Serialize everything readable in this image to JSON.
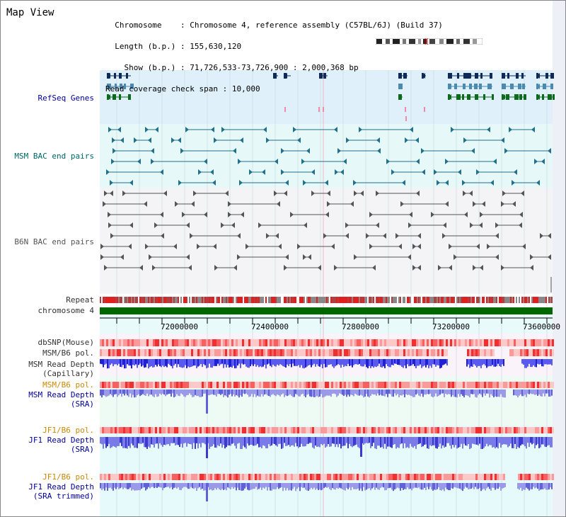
{
  "page_title": "Map View",
  "info": {
    "chromosome_key": "Chromosome",
    "chromosome_val": "Chromosome 4, reference assembly (C57BL/6J) (Build 37)",
    "length_key": "Length (b.p.)",
    "length_val": "155,630,120",
    "show_key": "Show (b.p.)",
    "show_val": "71,726,533-73,726,900 : 2,000,368 bp",
    "coverage_key": "Read coverage check span",
    "coverage_val": "10,000"
  },
  "tracks": {
    "refseq": "RefSeq Genes",
    "msm_bac": "MSM BAC end pairs",
    "b6n_bac": "B6N BAC end pairs",
    "repeat": "Repeat",
    "chromosome": "chromosome 4",
    "dbsnp": "dbSNP(Mouse)",
    "msm_b6_pol_1": "MSM/B6 pol.",
    "msm_depth_cap_1": "MSM Read Depth",
    "msm_depth_cap_2": "(Capillary)",
    "msm_b6_pol_2": "MSM/B6 pol.",
    "msm_depth_sra_1": "MSM Read Depth",
    "msm_depth_sra_2": "(SRA)",
    "jf1_b6_pol_1": "JF1/B6 pol.",
    "jf1_depth_sra_1": "JF1 Read Depth",
    "jf1_depth_sra_2": "(SRA)",
    "jf1_b6_pol_2": "JF1/B6 pol.",
    "jf1_depth_trim_1": "JF1 Read Depth",
    "jf1_depth_trim_2": "(SRA trimmed)"
  },
  "axis_ticks": [
    "72000000",
    "72400000",
    "72800000",
    "73200000",
    "73600000"
  ],
  "colors": {
    "refseq_label": "#000099",
    "msm_label": "#006666",
    "b6n_label": "#555555",
    "pol_label": "#cc8800",
    "depth_label": "#000099",
    "chromosome_bar": "#006600"
  }
}
